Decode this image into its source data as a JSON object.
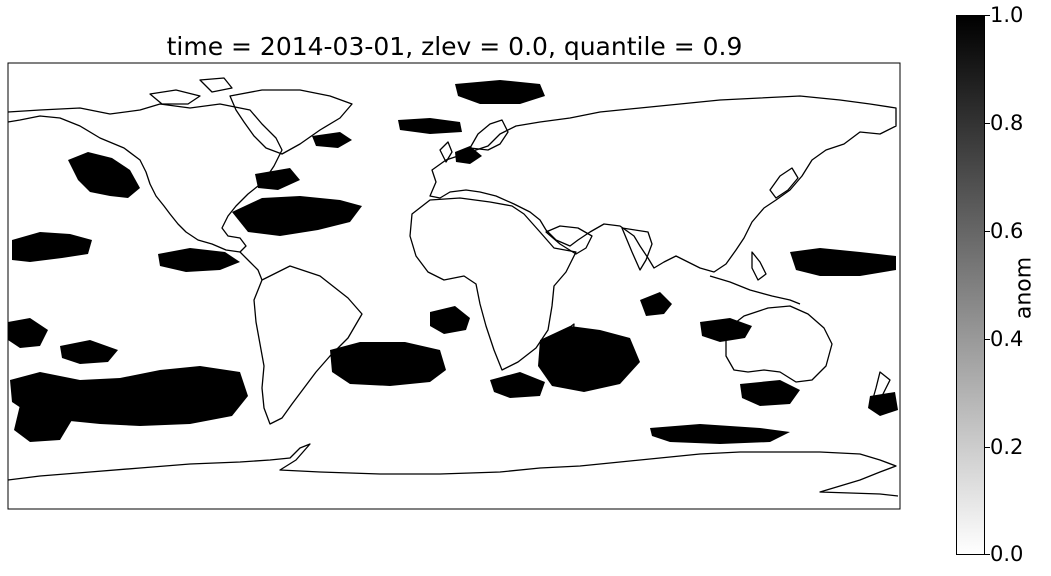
{
  "title": "time = 2014-03-01, zlev = 0.0, quantile = 0.9",
  "map": {
    "projection": "plate carree (global)",
    "variable": "anom",
    "value_scale": "binary (0 = white, 1 = black)",
    "coastlines": true
  },
  "colorbar": {
    "label": "anom",
    "colormap": "gray_r",
    "range": [
      0.0,
      1.0
    ],
    "ticks": [
      "0.0",
      "0.2",
      "0.4",
      "0.6",
      "0.8",
      "1.0"
    ]
  },
  "colors": {
    "anomaly": "#000000",
    "background": "#ffffff",
    "coastline": "#000000"
  }
}
